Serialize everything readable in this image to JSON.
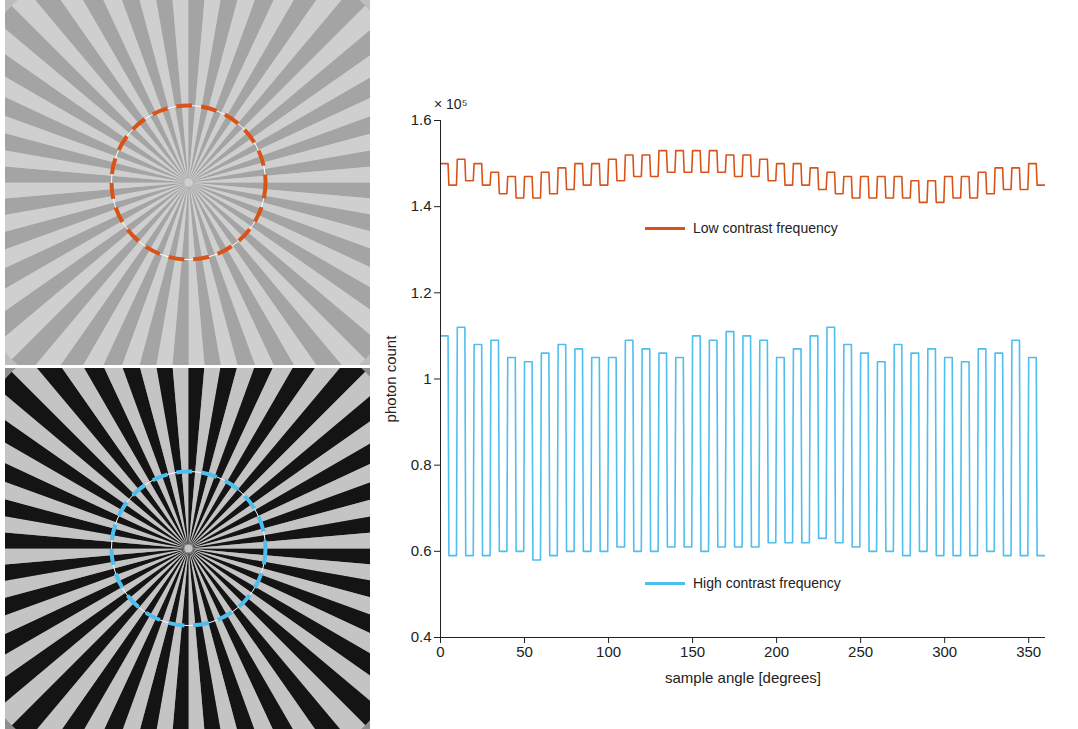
{
  "chart_data": {
    "type": "line",
    "x_label": "sample angle [degrees]",
    "y_label": "photon count",
    "annotations": [
      "× 10⁵"
    ],
    "legend": "center",
    "grid": false,
    "xlim": [
      0,
      360
    ],
    "xticks": [
      0,
      50,
      100,
      150,
      200,
      250,
      300,
      350
    ],
    "ylim": [
      0.4,
      1.6
    ],
    "yticks": [
      0.4,
      0.6,
      0.8,
      1,
      1.2,
      1.4,
      1.6
    ],
    "x": [
      0,
      4.5,
      5,
      9.5,
      10,
      14.5,
      15,
      19.5,
      20,
      24.5,
      25,
      29.5,
      30,
      34.5,
      35,
      39.5,
      40,
      44.5,
      45,
      49.5,
      50,
      54.5,
      55,
      59.5,
      60,
      64.5,
      65,
      69.5,
      70,
      74.5,
      75,
      79.5,
      80,
      84.5,
      85,
      89.5,
      90,
      94.5,
      95,
      99.5,
      100,
      104.5,
      105,
      109.5,
      110,
      114.5,
      115,
      119.5,
      120,
      124.5,
      125,
      129.5,
      130,
      134.5,
      135,
      139.5,
      140,
      144.5,
      145,
      149.5,
      150,
      154.5,
      155,
      159.5,
      160,
      164.5,
      165,
      169.5,
      170,
      174.5,
      175,
      179.5,
      180,
      184.5,
      185,
      189.5,
      190,
      194.5,
      195,
      199.5,
      200,
      204.5,
      205,
      209.5,
      210,
      214.5,
      215,
      219.5,
      220,
      224.5,
      225,
      229.5,
      230,
      234.5,
      235,
      239.5,
      240,
      244.5,
      245,
      249.5,
      250,
      254.5,
      255,
      259.5,
      260,
      264.5,
      265,
      269.5,
      270,
      274.5,
      275,
      279.5,
      280,
      284.5,
      285,
      289.5,
      290,
      294.5,
      295,
      299.5,
      300,
      304.5,
      305,
      309.5,
      310,
      314.5,
      315,
      319.5,
      320,
      324.5,
      325,
      329.5,
      330,
      334.5,
      335,
      339.5,
      340,
      344.5,
      345,
      349.5,
      350,
      354.5,
      355,
      359.5
    ],
    "series": [
      {
        "name": "Low contrast frequency",
        "color": "#d95319",
        "values": [
          1.5,
          1.5,
          1.45,
          1.45,
          1.51,
          1.51,
          1.46,
          1.46,
          1.5,
          1.5,
          1.45,
          1.45,
          1.48,
          1.48,
          1.43,
          1.43,
          1.47,
          1.47,
          1.42,
          1.42,
          1.47,
          1.47,
          1.42,
          1.42,
          1.48,
          1.48,
          1.43,
          1.43,
          1.49,
          1.49,
          1.44,
          1.44,
          1.5,
          1.5,
          1.45,
          1.45,
          1.5,
          1.5,
          1.45,
          1.45,
          1.51,
          1.51,
          1.46,
          1.46,
          1.52,
          1.52,
          1.47,
          1.47,
          1.52,
          1.52,
          1.47,
          1.47,
          1.53,
          1.53,
          1.48,
          1.48,
          1.53,
          1.53,
          1.48,
          1.48,
          1.53,
          1.53,
          1.48,
          1.48,
          1.53,
          1.53,
          1.48,
          1.48,
          1.52,
          1.52,
          1.47,
          1.47,
          1.52,
          1.52,
          1.47,
          1.47,
          1.51,
          1.51,
          1.46,
          1.46,
          1.5,
          1.5,
          1.45,
          1.45,
          1.5,
          1.5,
          1.45,
          1.45,
          1.49,
          1.49,
          1.44,
          1.44,
          1.48,
          1.48,
          1.43,
          1.43,
          1.47,
          1.47,
          1.42,
          1.42,
          1.47,
          1.47,
          1.42,
          1.42,
          1.47,
          1.47,
          1.42,
          1.42,
          1.47,
          1.47,
          1.42,
          1.42,
          1.46,
          1.46,
          1.41,
          1.41,
          1.46,
          1.46,
          1.41,
          1.41,
          1.47,
          1.47,
          1.42,
          1.42,
          1.47,
          1.47,
          1.42,
          1.42,
          1.48,
          1.48,
          1.43,
          1.43,
          1.49,
          1.49,
          1.44,
          1.44,
          1.49,
          1.49,
          1.44,
          1.44,
          1.5,
          1.5,
          1.45,
          1.45
        ]
      },
      {
        "name": "High contrast frequency",
        "color": "#4dbeee",
        "values": [
          1.1,
          1.1,
          0.59,
          0.59,
          1.12,
          1.12,
          0.59,
          0.59,
          1.08,
          1.08,
          0.59,
          0.59,
          1.09,
          1.09,
          0.6,
          0.6,
          1.05,
          1.05,
          0.6,
          0.6,
          1.04,
          1.04,
          0.58,
          0.58,
          1.06,
          1.06,
          0.59,
          0.59,
          1.08,
          1.08,
          0.6,
          0.6,
          1.07,
          1.07,
          0.6,
          0.6,
          1.05,
          1.05,
          0.6,
          0.6,
          1.05,
          1.05,
          0.61,
          0.61,
          1.09,
          1.09,
          0.6,
          0.6,
          1.07,
          1.07,
          0.6,
          0.6,
          1.06,
          1.06,
          0.61,
          0.61,
          1.05,
          1.05,
          0.61,
          0.61,
          1.1,
          1.1,
          0.6,
          0.6,
          1.09,
          1.09,
          0.61,
          0.61,
          1.11,
          1.11,
          0.61,
          0.61,
          1.1,
          1.1,
          0.61,
          0.61,
          1.09,
          1.09,
          0.62,
          0.62,
          1.05,
          1.05,
          0.62,
          0.62,
          1.07,
          1.07,
          0.62,
          0.62,
          1.1,
          1.1,
          0.63,
          0.63,
          1.12,
          1.12,
          0.62,
          0.62,
          1.08,
          1.08,
          0.61,
          0.61,
          1.06,
          1.06,
          0.6,
          0.6,
          1.04,
          1.04,
          0.6,
          0.6,
          1.08,
          1.08,
          0.59,
          0.59,
          1.06,
          1.06,
          0.6,
          0.6,
          1.07,
          1.07,
          0.59,
          0.59,
          1.05,
          1.05,
          0.59,
          0.59,
          1.04,
          1.04,
          0.59,
          0.59,
          1.07,
          1.07,
          0.6,
          0.6,
          1.06,
          1.06,
          0.59,
          0.59,
          1.09,
          1.09,
          0.59,
          0.59,
          1.05,
          1.05,
          0.59,
          0.59
        ]
      }
    ]
  }
}
